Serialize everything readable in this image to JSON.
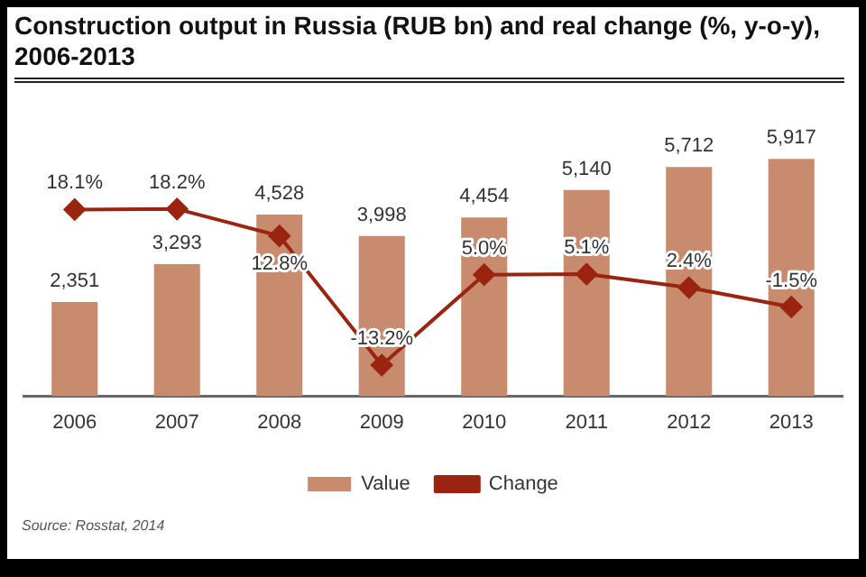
{
  "chart_data": {
    "type": "bar",
    "title": "Construction output in Russia (RUB bn) and real change (%, y-o-y), 2006-2013",
    "categories": [
      "2006",
      "2007",
      "2008",
      "2009",
      "2010",
      "2011",
      "2012",
      "2013"
    ],
    "series": [
      {
        "name": "Value",
        "color": "#c98b6e",
        "values": [
          2351,
          3293,
          4528,
          3998,
          4454,
          5140,
          5712,
          5917
        ],
        "value_labels": [
          "2,351",
          "3,293",
          "4,528",
          "3,998",
          "4,454",
          "5,140",
          "5,712",
          "5,917"
        ]
      },
      {
        "name": "Change",
        "type": "line",
        "axis": "y2",
        "color": "#9b2410",
        "marker": "diamond",
        "values": [
          18.1,
          18.2,
          12.8,
          -13.2,
          5.0,
          5.1,
          2.4,
          -1.5
        ],
        "value_labels": [
          "18.1%",
          "18.2%",
          "12.8%",
          "-13.2%",
          "5.0%",
          "5.1%",
          "2.4%",
          "-1.5%"
        ]
      }
    ],
    "tick_labels": "x",
    "legend": "bottom",
    "grid": false,
    "annotations": [
      "Source: Rosstat, 2014"
    ]
  }
}
